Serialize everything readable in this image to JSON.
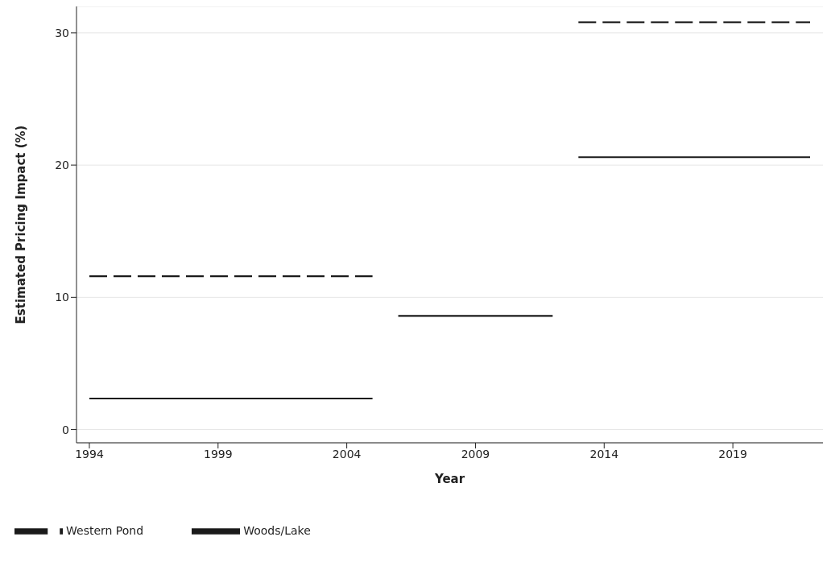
{
  "chart_data": {
    "type": "line",
    "xlabel": "Year",
    "ylabel": "Estimated Pricing Impact (%)",
    "xlim": [
      1993.5,
      2022.5
    ],
    "xticks": [
      1994,
      1999,
      2004,
      2009,
      2014,
      2019
    ],
    "ylim": [
      -1,
      32
    ],
    "yticks": [
      0,
      10,
      20,
      30
    ],
    "grid": "y",
    "legend": "bottom",
    "marker": "none",
    "series": [
      {
        "name": "Woods/Lake",
        "color": "#1a1a1a",
        "line_style": "solid",
        "x": [
          1994,
          2005
        ],
        "values": [
          2.35,
          2.35
        ]
      },
      {
        "color": "#1a1a1a",
        "line_style": "solid",
        "x": [
          2006,
          2012
        ],
        "values": [
          8.6,
          8.6
        ]
      },
      {
        "color": "#1a1a1a",
        "line_style": "solid",
        "x": [
          2013,
          2022
        ],
        "values": [
          20.6,
          20.6
        ]
      },
      {
        "name": "Western Pond",
        "color": "#1a1a1a",
        "line_style": "dashed",
        "x": [
          1994,
          2005
        ],
        "values": [
          11.6,
          11.6
        ]
      },
      {
        "color": "#1a1a1a",
        "line_style": "dashed",
        "x": [
          2013,
          2022
        ],
        "values": [
          30.8,
          30.8
        ]
      }
    ]
  }
}
